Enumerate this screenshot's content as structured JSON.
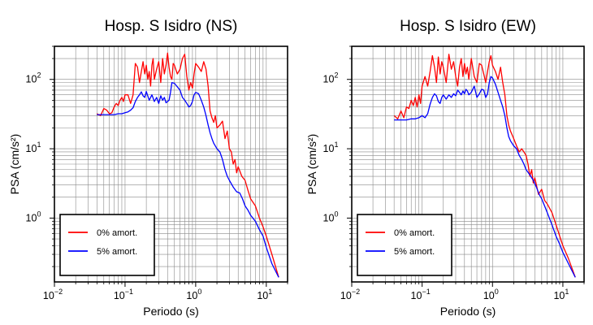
{
  "chart_data": [
    {
      "type": "line",
      "title": "Hosp. S Isidro (NS)",
      "xlabel": "Periodo (s)",
      "ylabel": "PSA (cm/s²)",
      "xscale": "log",
      "yscale": "log",
      "xlim": [
        0.01,
        20
      ],
      "ylim": [
        0.12,
        300
      ],
      "xticks": [
        "10",
        "10",
        "10",
        "10"
      ],
      "xtick_exp": [
        "−2",
        "−1",
        "0",
        "1"
      ],
      "yticks": [
        "10",
        "10",
        "10"
      ],
      "ytick_exp": [
        "0",
        "1",
        "2"
      ],
      "grid": true,
      "legend": "bottom-left",
      "series": [
        {
          "name": "0% amort.",
          "color": "#ff0000",
          "x": [
            0.04,
            0.045,
            0.05,
            0.055,
            0.06,
            0.065,
            0.07,
            0.075,
            0.08,
            0.085,
            0.09,
            0.095,
            0.1,
            0.11,
            0.12,
            0.13,
            0.14,
            0.15,
            0.16,
            0.17,
            0.18,
            0.19,
            0.2,
            0.21,
            0.22,
            0.23,
            0.24,
            0.25,
            0.26,
            0.28,
            0.3,
            0.32,
            0.34,
            0.36,
            0.38,
            0.4,
            0.42,
            0.44,
            0.46,
            0.48,
            0.5,
            0.55,
            0.6,
            0.65,
            0.7,
            0.75,
            0.8,
            0.85,
            0.9,
            0.95,
            1.0,
            1.1,
            1.2,
            1.3,
            1.4,
            1.5,
            1.6,
            1.7,
            1.8,
            1.9,
            2.0,
            2.2,
            2.4,
            2.6,
            2.8,
            3.0,
            3.2,
            3.4,
            3.6,
            3.8,
            4.0,
            4.5,
            5.0,
            5.5,
            6.0,
            7.0,
            8.0,
            9.0,
            10.0,
            12.0,
            15.0
          ],
          "values": [
            32,
            30,
            38,
            36,
            32,
            33,
            40,
            45,
            42,
            50,
            55,
            48,
            60,
            60,
            45,
            60,
            170,
            150,
            90,
            130,
            180,
            120,
            160,
            100,
            130,
            80,
            160,
            200,
            100,
            140,
            180,
            90,
            200,
            120,
            160,
            240,
            150,
            110,
            100,
            170,
            160,
            120,
            140,
            200,
            230,
            110,
            70,
            90,
            75,
            120,
            170,
            150,
            130,
            180,
            140,
            80,
            35,
            28,
            24,
            30,
            20,
            22,
            25,
            14,
            18,
            10,
            9,
            6,
            7,
            4.5,
            5.5,
            4,
            3.5,
            2.5,
            1.9,
            1.5,
            1.0,
            0.75,
            0.55,
            0.3,
            0.14
          ]
        },
        {
          "name": "5% amort.",
          "color": "#0000ff",
          "x": [
            0.04,
            0.05,
            0.06,
            0.07,
            0.08,
            0.09,
            0.1,
            0.11,
            0.12,
            0.13,
            0.14,
            0.15,
            0.16,
            0.17,
            0.18,
            0.19,
            0.2,
            0.22,
            0.24,
            0.26,
            0.28,
            0.3,
            0.32,
            0.34,
            0.36,
            0.38,
            0.4,
            0.42,
            0.44,
            0.46,
            0.5,
            0.55,
            0.6,
            0.65,
            0.7,
            0.75,
            0.8,
            0.85,
            0.9,
            0.95,
            1.0,
            1.1,
            1.2,
            1.3,
            1.4,
            1.5,
            1.6,
            1.7,
            1.8,
            2.0,
            2.2,
            2.4,
            2.6,
            2.8,
            3.0,
            3.4,
            3.8,
            4.2,
            4.6,
            5.0,
            5.5,
            6.0,
            7.0,
            8.0,
            9.0,
            10.0,
            12.0,
            15.0
          ],
          "values": [
            31,
            31,
            31,
            31,
            32,
            32,
            33,
            34,
            36,
            39,
            48,
            55,
            60,
            66,
            58,
            55,
            67,
            50,
            60,
            48,
            55,
            45,
            58,
            50,
            55,
            46,
            48,
            50,
            65,
            90,
            88,
            78,
            70,
            55,
            50,
            45,
            40,
            42,
            48,
            60,
            65,
            62,
            50,
            40,
            30,
            22,
            17,
            14,
            12,
            10,
            9,
            7,
            5,
            4,
            3.5,
            2.8,
            2.4,
            2.3,
            1.9,
            1.5,
            1.3,
            1.1,
            0.9,
            0.68,
            0.55,
            0.38,
            0.22,
            0.14
          ]
        }
      ]
    },
    {
      "type": "line",
      "title": "Hosp. S Isidro (EW)",
      "xlabel": "Periodo (s)",
      "ylabel": "PSA (cm/s²)",
      "xscale": "log",
      "yscale": "log",
      "xlim": [
        0.01,
        20
      ],
      "ylim": [
        0.12,
        300
      ],
      "xticks": [
        "10",
        "10",
        "10",
        "10"
      ],
      "xtick_exp": [
        "−2",
        "−1",
        "0",
        "1"
      ],
      "yticks": [
        "10",
        "10",
        "10"
      ],
      "ytick_exp": [
        "0",
        "1",
        "2"
      ],
      "grid": true,
      "legend": "bottom-left",
      "series": [
        {
          "name": "0% amort.",
          "color": "#ff0000",
          "x": [
            0.04,
            0.045,
            0.05,
            0.055,
            0.06,
            0.065,
            0.07,
            0.075,
            0.08,
            0.085,
            0.09,
            0.095,
            0.1,
            0.11,
            0.12,
            0.13,
            0.14,
            0.15,
            0.16,
            0.17,
            0.18,
            0.19,
            0.2,
            0.22,
            0.24,
            0.26,
            0.28,
            0.3,
            0.32,
            0.34,
            0.36,
            0.38,
            0.4,
            0.42,
            0.44,
            0.46,
            0.5,
            0.55,
            0.6,
            0.65,
            0.7,
            0.75,
            0.8,
            0.85,
            0.9,
            0.95,
            1.0,
            1.1,
            1.2,
            1.3,
            1.4,
            1.5,
            1.6,
            1.7,
            1.8,
            2.0,
            2.2,
            2.4,
            2.6,
            2.8,
            3.0,
            3.2,
            3.4,
            3.6,
            3.8,
            4.0,
            4.5,
            5.0,
            5.5,
            6.0,
            7.0,
            8.0,
            9.0,
            10.0,
            12.0,
            15.0
          ],
          "values": [
            30,
            27,
            35,
            28,
            40,
            38,
            50,
            42,
            55,
            40,
            60,
            45,
            80,
            110,
            80,
            130,
            220,
            150,
            90,
            210,
            120,
            180,
            150,
            90,
            230,
            140,
            180,
            110,
            80,
            150,
            200,
            110,
            170,
            120,
            150,
            100,
            200,
            110,
            90,
            170,
            160,
            120,
            90,
            130,
            180,
            220,
            160,
            130,
            100,
            150,
            90,
            60,
            30,
            22,
            18,
            14,
            11,
            9,
            10,
            9,
            8,
            6,
            4,
            5,
            3.2,
            3.8,
            2.2,
            2.6,
            1.8,
            1.6,
            1.2,
            0.8,
            0.55,
            0.4,
            0.26,
            0.14
          ]
        },
        {
          "name": "5% amort.",
          "color": "#0000ff",
          "x": [
            0.04,
            0.05,
            0.06,
            0.07,
            0.08,
            0.09,
            0.1,
            0.11,
            0.12,
            0.13,
            0.14,
            0.15,
            0.16,
            0.17,
            0.18,
            0.19,
            0.2,
            0.22,
            0.24,
            0.26,
            0.28,
            0.3,
            0.32,
            0.34,
            0.36,
            0.38,
            0.4,
            0.42,
            0.44,
            0.46,
            0.5,
            0.55,
            0.6,
            0.65,
            0.7,
            0.75,
            0.8,
            0.85,
            0.9,
            0.95,
            1.0,
            1.1,
            1.2,
            1.3,
            1.4,
            1.5,
            1.6,
            1.7,
            1.8,
            2.0,
            2.2,
            2.4,
            2.6,
            2.8,
            3.0,
            3.4,
            3.8,
            4.2,
            4.6,
            5.0,
            5.5,
            6.0,
            7.0,
            8.0,
            9.0,
            10.0,
            12.0,
            15.0
          ],
          "values": [
            26,
            26,
            26,
            27,
            27,
            28,
            30,
            28,
            32,
            44,
            55,
            62,
            58,
            48,
            45,
            55,
            60,
            52,
            60,
            55,
            62,
            58,
            70,
            65,
            60,
            68,
            62,
            72,
            68,
            60,
            65,
            80,
            55,
            62,
            72,
            70,
            55,
            62,
            90,
            110,
            105,
            85,
            65,
            50,
            40,
            30,
            20,
            15,
            13,
            11,
            10,
            8,
            7,
            6,
            5,
            4.2,
            3.5,
            2.8,
            2.2,
            1.9,
            1.5,
            1.2,
            0.8,
            0.55,
            0.42,
            0.32,
            0.22,
            0.14
          ]
        }
      ]
    }
  ]
}
